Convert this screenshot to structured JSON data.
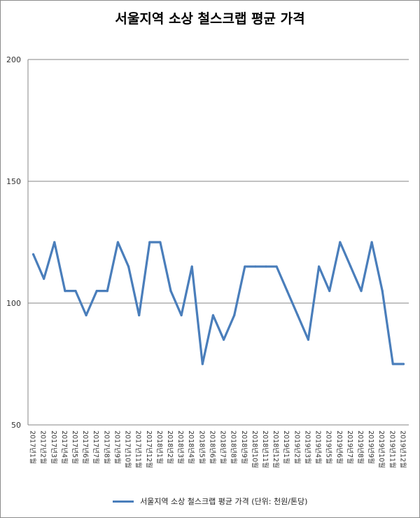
{
  "chart_data": {
    "type": "line",
    "title": "서울지역 소상 철스크랩 평균 가격",
    "ylim": [
      50,
      200
    ],
    "yticks": [
      50,
      100,
      150,
      200
    ],
    "grid": true,
    "legend_position": "bottom",
    "line_color": "#4a7ebb",
    "categories": [
      "2017년1월",
      "2017년2월",
      "2017년3월",
      "2017년4월",
      "2017년5월",
      "2017년6월",
      "2017년7월",
      "2017년8월",
      "2017년9월",
      "2017년10월",
      "2017년11월",
      "2017년12월",
      "2018년1월",
      "2018년2월",
      "2018년3월",
      "2018년4월",
      "2018년5월",
      "2018년6월",
      "2018년7월",
      "2018년8월",
      "2018년9월",
      "2018년10월",
      "2018년11월",
      "2018년12월",
      "2019년1월",
      "2019년2월",
      "2019년3월",
      "2019년4월",
      "2019년5월",
      "2019년6월",
      "2019년7월",
      "2019년8월",
      "2019년9월",
      "2019년10월",
      "2019년11월",
      "2019년12월"
    ],
    "series": [
      {
        "name": "서울지역 소상 철스크랩 평균 가격 (단위: 천원/톤당)",
        "values": [
          120,
          110,
          125,
          105,
          105,
          95,
          105,
          105,
          125,
          115,
          95,
          125,
          125,
          105,
          95,
          115,
          75,
          95,
          85,
          95,
          115,
          115,
          115,
          115,
          105,
          95,
          85,
          115,
          105,
          125,
          115,
          105,
          125,
          105,
          75,
          75
        ]
      }
    ]
  }
}
